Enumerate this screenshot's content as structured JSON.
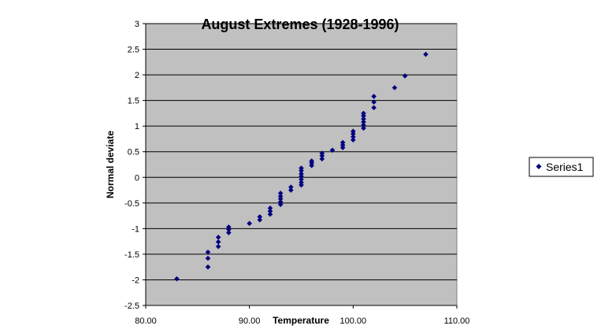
{
  "chart_data": {
    "type": "scatter",
    "title": "August Extremes (1928-1996)",
    "xlabel": "Temperature",
    "ylabel": "Normal deviate",
    "xlim": [
      80,
      110
    ],
    "ylim": [
      -2.5,
      3
    ],
    "xticks": [
      80,
      90,
      100,
      110
    ],
    "xtick_labels": [
      "80.00",
      "90.00",
      "100.00",
      "110.00"
    ],
    "yticks": [
      -2.5,
      -2,
      -1.5,
      -1,
      -0.5,
      0,
      0.5,
      1,
      1.5,
      2,
      2.5,
      3
    ],
    "ytick_labels": [
      "-2.5",
      "-2",
      "-1.5",
      "-1",
      "-0.5",
      "0",
      "0.5",
      "1",
      "1.5",
      "2",
      "2.5",
      "3"
    ],
    "grid": "horizontal",
    "legend_position": "right",
    "plot_background": "#c0c0c0",
    "marker": "diamond",
    "series": [
      {
        "name": "Series1",
        "color": "#000080",
        "points": [
          [
            83,
            -1.98
          ],
          [
            86,
            -1.75
          ],
          [
            86,
            -1.58
          ],
          [
            86,
            -1.46
          ],
          [
            87,
            -1.35
          ],
          [
            87,
            -1.26
          ],
          [
            87,
            -1.17
          ],
          [
            88,
            -1.08
          ],
          [
            88,
            -1.02
          ],
          [
            88,
            -0.97
          ],
          [
            90,
            -0.9
          ],
          [
            91,
            -0.83
          ],
          [
            91,
            -0.77
          ],
          [
            92,
            -0.72
          ],
          [
            92,
            -0.66
          ],
          [
            92,
            -0.6
          ],
          [
            93,
            -0.53
          ],
          [
            93,
            -0.48
          ],
          [
            93,
            -0.42
          ],
          [
            93,
            -0.37
          ],
          [
            93,
            -0.31
          ],
          [
            94,
            -0.25
          ],
          [
            94,
            -0.19
          ],
          [
            95,
            -0.15
          ],
          [
            95,
            -0.1
          ],
          [
            95,
            -0.04
          ],
          [
            95,
            0.02
          ],
          [
            95,
            0.07
          ],
          [
            95,
            0.13
          ],
          [
            95,
            0.18
          ],
          [
            96,
            0.23
          ],
          [
            96,
            0.28
          ],
          [
            96,
            0.32
          ],
          [
            97,
            0.36
          ],
          [
            97,
            0.42
          ],
          [
            97,
            0.47
          ],
          [
            98,
            0.53
          ],
          [
            99,
            0.58
          ],
          [
            99,
            0.63
          ],
          [
            99,
            0.68
          ],
          [
            100,
            0.73
          ],
          [
            100,
            0.79
          ],
          [
            100,
            0.85
          ],
          [
            100,
            0.9
          ],
          [
            101,
            0.96
          ],
          [
            101,
            1.02
          ],
          [
            101,
            1.08
          ],
          [
            101,
            1.14
          ],
          [
            101,
            1.2
          ],
          [
            101,
            1.25
          ],
          [
            102,
            1.36
          ],
          [
            102,
            1.47
          ],
          [
            102,
            1.58
          ],
          [
            104,
            1.75
          ],
          [
            105,
            1.98
          ],
          [
            107,
            2.4
          ]
        ]
      }
    ]
  }
}
